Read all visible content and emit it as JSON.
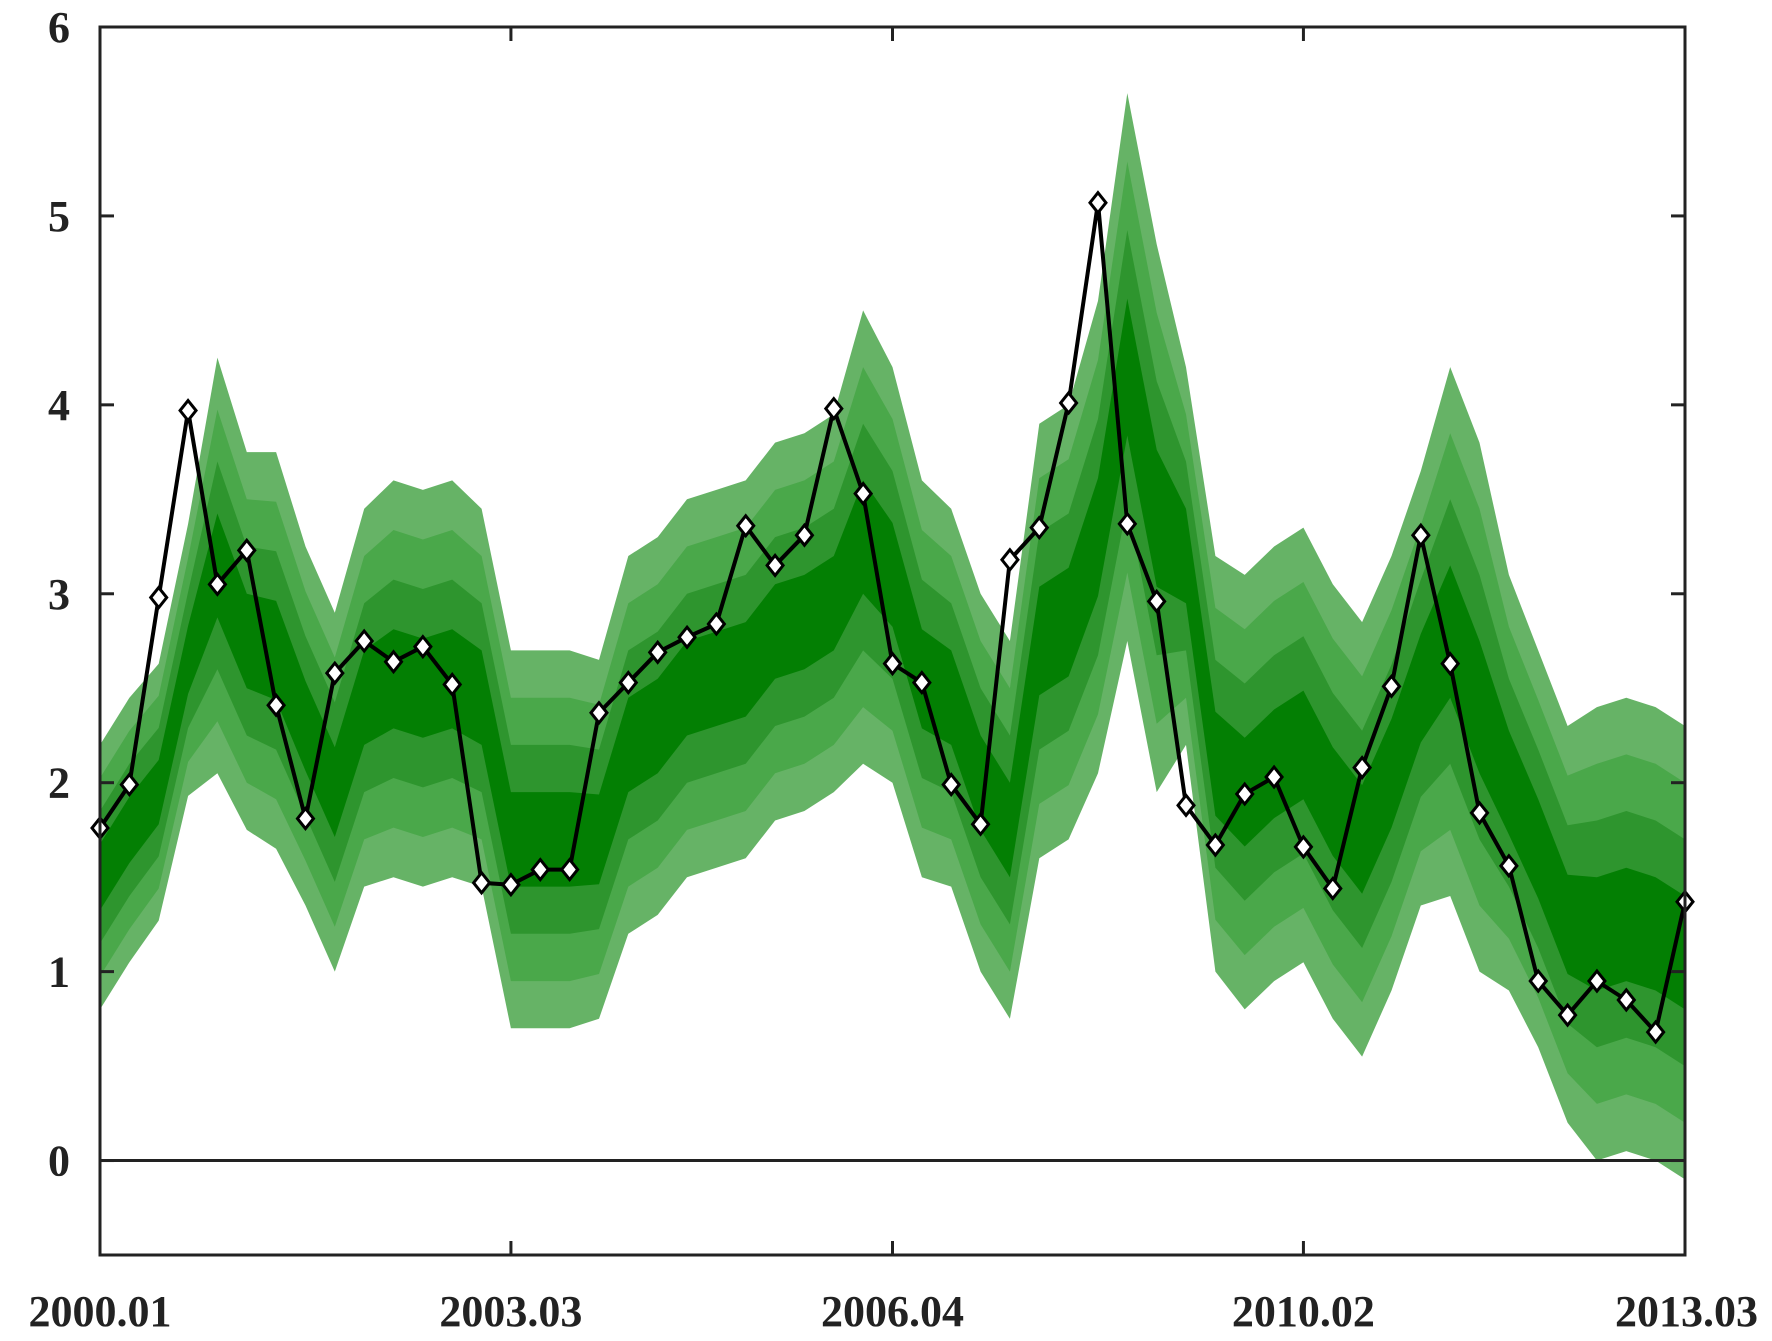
{
  "chart_data": {
    "type": "area",
    "title": "",
    "xlabel": "",
    "ylabel": "",
    "x_tick_labels": [
      "2000.01",
      "2003.03",
      "2006.04",
      "2010.02",
      "2013.03"
    ],
    "x_tick_index": [
      0,
      14,
      27,
      41,
      54
    ],
    "y_ticks": [
      0,
      1,
      2,
      3,
      4,
      5,
      6
    ],
    "ylim": [
      -0.5,
      6
    ],
    "xlim_index": [
      0,
      54
    ],
    "zero_line": true,
    "grid": false,
    "legend": "none",
    "colors": {
      "band_outer": "#66b366",
      "band_2": "#4aa84a",
      "band_3": "#2e952e",
      "band_inner": "#037f03",
      "line": "#000000",
      "axis": "#222222"
    },
    "series": [
      {
        "values": [
          1.76,
          1.99,
          2.98,
          3.97,
          3.05,
          3.23,
          2.41,
          1.81,
          2.58,
          2.75,
          2.64,
          2.72,
          2.52,
          1.47,
          1.46,
          1.54,
          1.54,
          2.37,
          2.53,
          2.69,
          2.77,
          2.84,
          3.36,
          3.15,
          3.31,
          3.98,
          3.53,
          2.63,
          2.53,
          1.99,
          1.78,
          3.18,
          3.35,
          4.01,
          5.07,
          3.37,
          2.96,
          1.88,
          1.67,
          1.94,
          2.03,
          1.66,
          1.44,
          2.08,
          2.51,
          3.31,
          2.63,
          1.84,
          1.56,
          0.95,
          0.77,
          0.95,
          0.85,
          0.68,
          1.37
        ]
      }
    ],
    "bands": {
      "center": [
        1.5,
        1.75,
        1.95,
        2.65,
        3.15,
        2.75,
        2.7,
        2.3,
        1.95,
        2.45,
        2.55,
        2.5,
        2.55,
        2.45,
        1.7,
        1.7,
        1.7,
        1.7,
        2.2,
        2.3,
        2.5,
        2.55,
        2.6,
        2.8,
        2.85,
        2.95,
        3.3,
        3.1,
        2.55,
        2.45,
        2.0,
        1.75,
        2.75,
        2.85,
        3.3,
        4.2,
        3.4,
        3.2,
        2.1,
        1.95,
        2.1,
        2.2,
        1.9,
        1.7,
        2.05,
        2.5,
        2.8,
        2.4,
        2.0,
        1.65,
        1.25,
        1.2,
        1.25,
        1.2,
        1.1
      ],
      "halfwidth": [
        0.7,
        0.7,
        0.68,
        0.72,
        1.1,
        1.0,
        1.05,
        0.95,
        0.95,
        1.0,
        1.05,
        1.05,
        1.05,
        1.0,
        1.0,
        1.0,
        1.0,
        0.95,
        1.0,
        1.0,
        1.0,
        1.0,
        1.0,
        1.0,
        1.0,
        1.0,
        1.2,
        1.1,
        1.05,
        1.0,
        1.0,
        1.0,
        1.15,
        1.15,
        1.25,
        1.45,
        1.45,
        1.0,
        1.1,
        1.15,
        1.15,
        1.15,
        1.15,
        1.15,
        1.15,
        1.15,
        1.4,
        1.4,
        1.1,
        1.05,
        1.05,
        1.2,
        1.2,
        1.2,
        1.2
      ]
    }
  }
}
